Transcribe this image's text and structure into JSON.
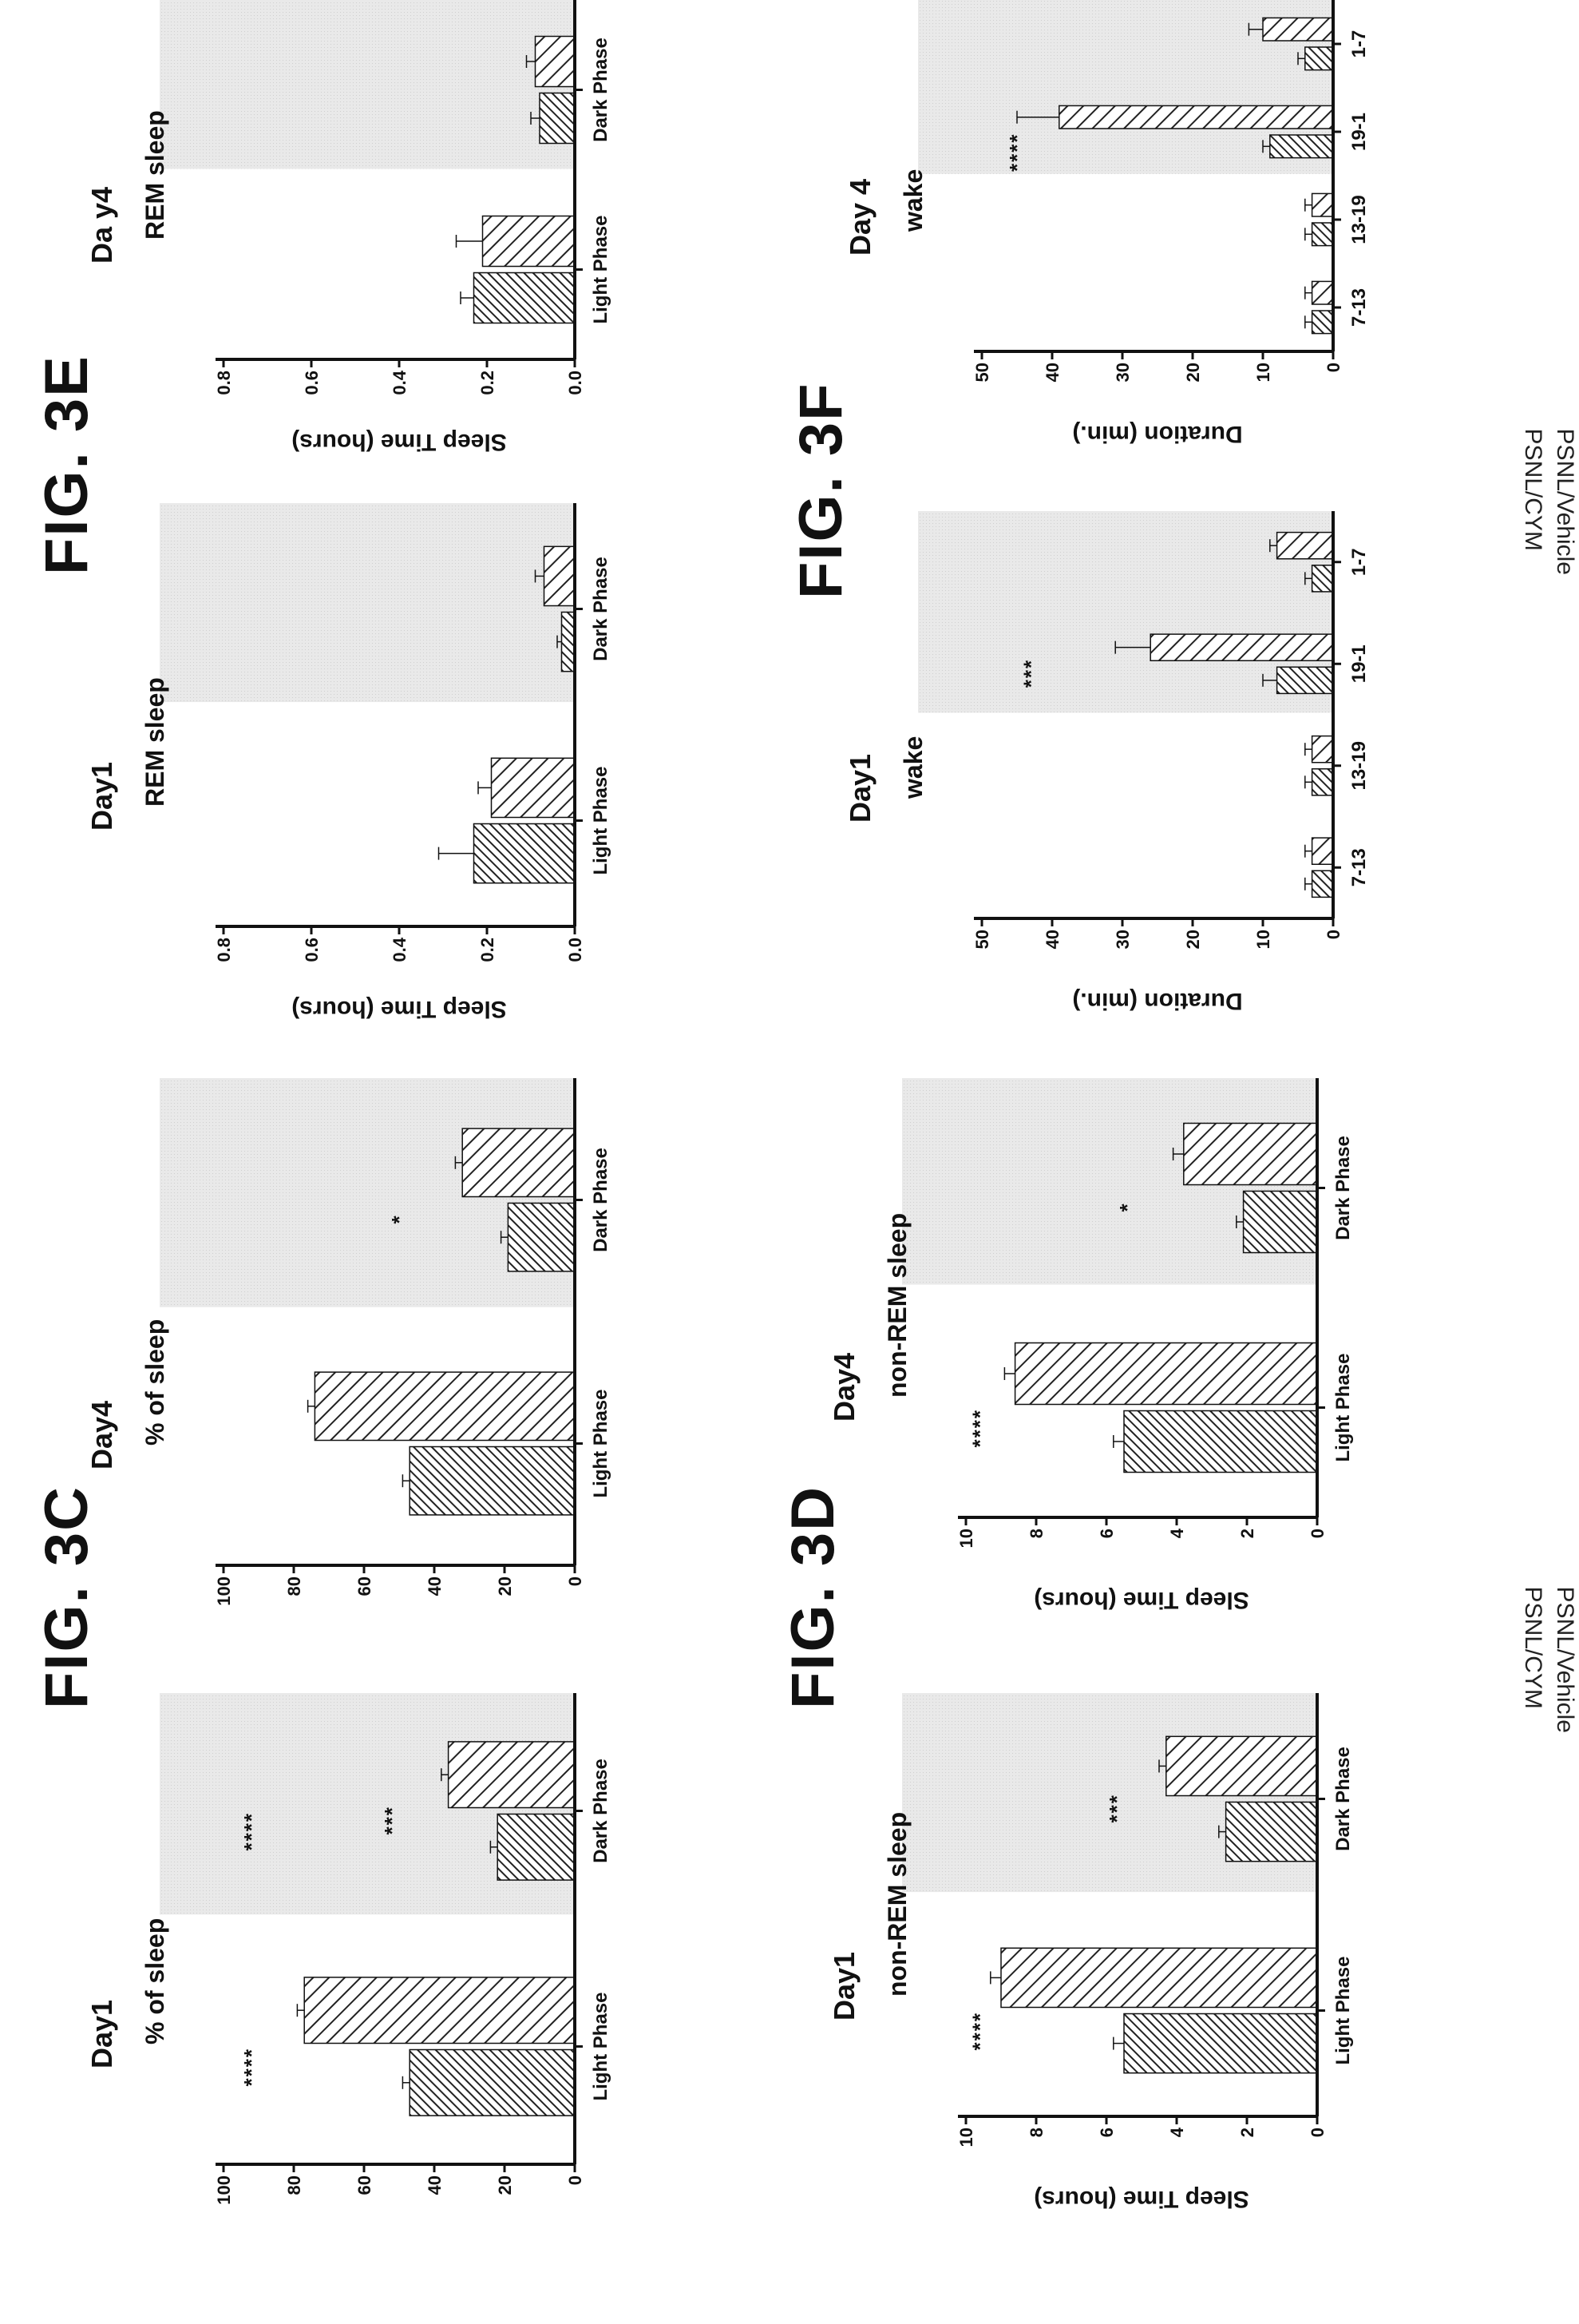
{
  "figure_labels": [
    "FIG. 3C",
    "FIG. 3D",
    "FIG. 3E",
    "FIG. 3F"
  ],
  "legend": [
    "PSNL/Vehicle",
    "PSNL/CYM"
  ],
  "colors": {
    "shade": "#e9e9e9",
    "bar_vehicle": "#222222",
    "bar_cym": "#222222",
    "axis": "#111111"
  },
  "chart_data": [
    {
      "id": "3c-day1",
      "type": "bar",
      "figure": "FIG. 3C",
      "title": "Day1",
      "subtitle": "% of sleep",
      "ylabel": "",
      "ylim": [
        0,
        100
      ],
      "yticks": [
        0,
        20,
        40,
        60,
        80,
        100
      ],
      "categories": [
        "Light Phase",
        "Dark Phase"
      ],
      "series": [
        {
          "values": [
            47,
            22
          ]
        },
        {
          "values": [
            77,
            36
          ]
        }
      ],
      "errors": [
        [
          2,
          2
        ],
        [
          2,
          2
        ]
      ],
      "annotations": [
        {
          "text": "****",
          "category": 0,
          "value": 90
        },
        {
          "text": "***",
          "category": 1,
          "value": 50
        },
        {
          "text": "****",
          "category": 1,
          "value": 90
        }
      ],
      "shaded_category": 1
    },
    {
      "id": "3c-day4",
      "type": "bar",
      "figure": "FIG. 3C",
      "title": "Day4",
      "subtitle": "% of sleep",
      "ylabel": "",
      "ylim": [
        0,
        100
      ],
      "yticks": [
        0,
        20,
        40,
        60,
        80,
        100
      ],
      "categories": [
        "Light Phase",
        "Dark Phase"
      ],
      "series": [
        {
          "values": [
            47,
            19
          ]
        },
        {
          "values": [
            74,
            32
          ]
        }
      ],
      "errors": [
        [
          2,
          2
        ],
        [
          2,
          2
        ]
      ],
      "annotations": [
        {
          "text": "*",
          "category": 1,
          "value": 48
        }
      ],
      "shaded_category": 1
    },
    {
      "id": "3d-day1",
      "type": "bar",
      "figure": "FIG. 3D",
      "title": "Day1",
      "subtitle": "non-REM sleep",
      "ylabel": "Sleep Time (hours)",
      "ylim": [
        0,
        10
      ],
      "yticks": [
        0,
        2,
        4,
        6,
        8,
        10
      ],
      "categories": [
        "Light Phase",
        "Dark Phase"
      ],
      "series": [
        {
          "values": [
            5.5,
            2.6
          ]
        },
        {
          "values": [
            9.0,
            4.3
          ]
        }
      ],
      "errors": [
        [
          0.3,
          0.2
        ],
        [
          0.3,
          0.2
        ]
      ],
      "annotations": [
        {
          "text": "****",
          "category": 0,
          "value": 9.4
        },
        {
          "text": "***",
          "category": 1,
          "value": 5.5
        }
      ],
      "shaded_category": 1
    },
    {
      "id": "3d-day4",
      "type": "bar",
      "figure": "FIG. 3D",
      "title": "Day4",
      "subtitle": "non-REM sleep",
      "ylabel": "Sleep Time (hours)",
      "ylim": [
        0,
        10
      ],
      "yticks": [
        0,
        2,
        4,
        6,
        8,
        10
      ],
      "categories": [
        "Light Phase",
        "Dark Phase"
      ],
      "series": [
        {
          "values": [
            5.5,
            2.1
          ]
        },
        {
          "values": [
            8.6,
            3.8
          ]
        }
      ],
      "errors": [
        [
          0.3,
          0.2
        ],
        [
          0.3,
          0.3
        ]
      ],
      "annotations": [
        {
          "text": "****",
          "category": 0,
          "value": 9.4
        },
        {
          "text": "*",
          "category": 1,
          "value": 5.2
        }
      ],
      "shaded_category": 1
    },
    {
      "id": "3e-day1",
      "type": "bar",
      "figure": "FIG. 3E",
      "title": "Day1",
      "subtitle": "REM sleep",
      "ylabel": "Sleep Time (hours)",
      "ylim": [
        0,
        0.8
      ],
      "yticks": [
        0.0,
        0.2,
        0.4,
        0.6,
        0.8
      ],
      "ytick_decimals": 1,
      "categories": [
        "Light Phase",
        "Dark Phase"
      ],
      "series": [
        {
          "values": [
            0.23,
            0.03
          ]
        },
        {
          "values": [
            0.19,
            0.07
          ]
        }
      ],
      "errors": [
        [
          0.08,
          0.01
        ],
        [
          0.03,
          0.02
        ]
      ],
      "annotations": [],
      "shaded_category": 1
    },
    {
      "id": "3e-day4",
      "type": "bar",
      "figure": "FIG. 3E",
      "title": "Da y4",
      "subtitle": "REM sleep",
      "ylabel": "Sleep Time (hours)",
      "ylim": [
        0,
        0.8
      ],
      "yticks": [
        0.0,
        0.2,
        0.4,
        0.6,
        0.8
      ],
      "ytick_decimals": 1,
      "categories": [
        "Light Phase",
        "Dark Phase"
      ],
      "series": [
        {
          "values": [
            0.23,
            0.08
          ]
        },
        {
          "values": [
            0.21,
            0.09
          ]
        }
      ],
      "errors": [
        [
          0.03,
          0.02
        ],
        [
          0.06,
          0.02
        ]
      ],
      "annotations": [],
      "shaded_category": 1
    },
    {
      "id": "3f-day1",
      "type": "bar",
      "figure": "FIG. 3F",
      "title": "Day1",
      "subtitle": "wake",
      "ylabel": "Duration (min.)",
      "ylim": [
        0,
        50
      ],
      "yticks": [
        0,
        10,
        20,
        30,
        40,
        50
      ],
      "categories": [
        "7-13",
        "13-19",
        "19-1",
        "1-7"
      ],
      "series": [
        {
          "values": [
            3,
            3,
            8,
            3
          ]
        },
        {
          "values": [
            3,
            3,
            26,
            8
          ]
        }
      ],
      "errors": [
        [
          1,
          1,
          2,
          1
        ],
        [
          1,
          1,
          5,
          1
        ]
      ],
      "annotations": [
        {
          "text": "***",
          "category": 2,
          "value": 42
        }
      ],
      "shaded_category": 2
    },
    {
      "id": "3f-day4",
      "type": "bar",
      "figure": "FIG. 3F",
      "title": "Day 4",
      "subtitle": "wake",
      "ylabel": "Duration (min.)",
      "ylim": [
        0,
        50
      ],
      "yticks": [
        0,
        10,
        20,
        30,
        40,
        50
      ],
      "categories": [
        "7-13",
        "13-19",
        "19-1",
        "1-7"
      ],
      "series": [
        {
          "values": [
            3,
            3,
            9,
            4
          ]
        },
        {
          "values": [
            3,
            3,
            39,
            10
          ]
        }
      ],
      "errors": [
        [
          1,
          1,
          1,
          1
        ],
        [
          1,
          1,
          6,
          2
        ]
      ],
      "annotations": [
        {
          "text": "****",
          "category": 2,
          "value": 44
        }
      ],
      "shaded_category": 2
    }
  ]
}
